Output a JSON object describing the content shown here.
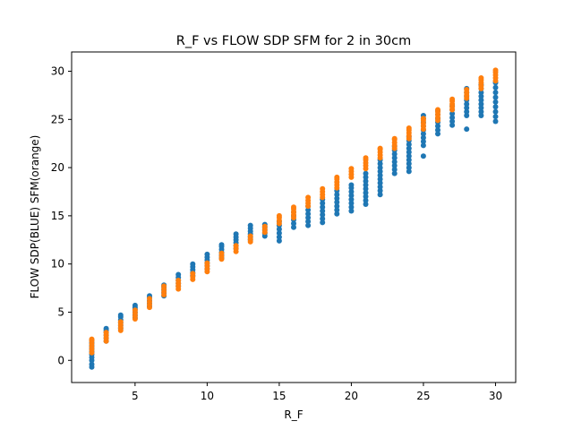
{
  "chart_data": {
    "type": "scatter",
    "title": "R_F vs FLOW SDP SFM for 2 in 30cm",
    "xlabel": "R_F",
    "ylabel": "FLOW SDP(BLUE) SFM(orange)",
    "xlim": [
      0.6,
      31.4
    ],
    "ylim": [
      -2.3,
      32.0
    ],
    "xticks": [
      5,
      10,
      15,
      20,
      25,
      30
    ],
    "yticks": [
      0,
      5,
      10,
      15,
      20,
      25,
      30
    ],
    "grid": false,
    "legend": "none",
    "series": [
      {
        "color": "#1f77b4",
        "points": [
          [
            2,
            -0.7
          ],
          [
            2,
            -0.4
          ],
          [
            2,
            0.0
          ],
          [
            2,
            0.3
          ],
          [
            2,
            0.6
          ],
          [
            2,
            0.9
          ],
          [
            2,
            1.2
          ],
          [
            2,
            1.5
          ],
          [
            2,
            1.8
          ],
          [
            2,
            2.1
          ],
          [
            3,
            2.0
          ],
          [
            3,
            2.3
          ],
          [
            3,
            2.6
          ],
          [
            3,
            2.9
          ],
          [
            3,
            3.1
          ],
          [
            3,
            3.3
          ],
          [
            4,
            3.3
          ],
          [
            4,
            3.6
          ],
          [
            4,
            3.9
          ],
          [
            4,
            4.2
          ],
          [
            4,
            4.5
          ],
          [
            4,
            4.7
          ],
          [
            5,
            4.4
          ],
          [
            5,
            4.7
          ],
          [
            5,
            5.0
          ],
          [
            5,
            5.3
          ],
          [
            5,
            5.5
          ],
          [
            5,
            5.7
          ],
          [
            6,
            5.6
          ],
          [
            6,
            5.9
          ],
          [
            6,
            6.2
          ],
          [
            6,
            6.5
          ],
          [
            6,
            6.7
          ],
          [
            7,
            6.7
          ],
          [
            7,
            7.0
          ],
          [
            7,
            7.3
          ],
          [
            7,
            7.6
          ],
          [
            7,
            7.8
          ],
          [
            8,
            7.7
          ],
          [
            8,
            8.0
          ],
          [
            8,
            8.3
          ],
          [
            8,
            8.6
          ],
          [
            8,
            8.9
          ],
          [
            9,
            8.8
          ],
          [
            9,
            9.1
          ],
          [
            9,
            9.4
          ],
          [
            9,
            9.7
          ],
          [
            9,
            10.0
          ],
          [
            10,
            9.5
          ],
          [
            10,
            9.8
          ],
          [
            10,
            10.1
          ],
          [
            10,
            10.4
          ],
          [
            10,
            10.7
          ],
          [
            10,
            11.0
          ],
          [
            11,
            10.6
          ],
          [
            11,
            10.9
          ],
          [
            11,
            11.2
          ],
          [
            11,
            11.5
          ],
          [
            11,
            11.8
          ],
          [
            11,
            12.0
          ],
          [
            12,
            11.6
          ],
          [
            12,
            11.9
          ],
          [
            12,
            12.2
          ],
          [
            12,
            12.5
          ],
          [
            12,
            12.8
          ],
          [
            12,
            13.1
          ],
          [
            13,
            12.5
          ],
          [
            13,
            12.8
          ],
          [
            13,
            13.1
          ],
          [
            13,
            13.4
          ],
          [
            13,
            13.7
          ],
          [
            13,
            14.0
          ],
          [
            14,
            12.9
          ],
          [
            14,
            13.2
          ],
          [
            14,
            13.5
          ],
          [
            14,
            13.8
          ],
          [
            14,
            14.1
          ],
          [
            15,
            12.4
          ],
          [
            15,
            12.8
          ],
          [
            15,
            13.2
          ],
          [
            15,
            13.6
          ],
          [
            15,
            14.0
          ],
          [
            15,
            14.4
          ],
          [
            16,
            13.8
          ],
          [
            16,
            14.2
          ],
          [
            16,
            14.6
          ],
          [
            16,
            15.0
          ],
          [
            16,
            15.4
          ],
          [
            17,
            14.0
          ],
          [
            17,
            14.4
          ],
          [
            17,
            14.8
          ],
          [
            17,
            15.2
          ],
          [
            17,
            15.6
          ],
          [
            17,
            16.0
          ],
          [
            18,
            14.3
          ],
          [
            18,
            14.7
          ],
          [
            18,
            15.1
          ],
          [
            18,
            15.5
          ],
          [
            18,
            15.9
          ],
          [
            18,
            16.3
          ],
          [
            18,
            16.7
          ],
          [
            19,
            15.2
          ],
          [
            19,
            15.6
          ],
          [
            19,
            16.0
          ],
          [
            19,
            16.4
          ],
          [
            19,
            16.8
          ],
          [
            19,
            17.2
          ],
          [
            19,
            17.6
          ],
          [
            20,
            15.5
          ],
          [
            20,
            15.9
          ],
          [
            20,
            16.3
          ],
          [
            20,
            16.7
          ],
          [
            20,
            17.1
          ],
          [
            20,
            17.5
          ],
          [
            20,
            17.9
          ],
          [
            20,
            18.2
          ],
          [
            21,
            16.2
          ],
          [
            21,
            16.6
          ],
          [
            21,
            17.0
          ],
          [
            21,
            17.4
          ],
          [
            21,
            17.8
          ],
          [
            21,
            18.2
          ],
          [
            21,
            18.6
          ],
          [
            21,
            19.0
          ],
          [
            21,
            19.4
          ],
          [
            22,
            17.2
          ],
          [
            22,
            17.6
          ],
          [
            22,
            18.0
          ],
          [
            22,
            18.4
          ],
          [
            22,
            18.8
          ],
          [
            22,
            19.2
          ],
          [
            22,
            19.6
          ],
          [
            22,
            20.0
          ],
          [
            22,
            20.4
          ],
          [
            22,
            20.8
          ],
          [
            23,
            19.4
          ],
          [
            23,
            19.8
          ],
          [
            23,
            20.2
          ],
          [
            23,
            20.6
          ],
          [
            23,
            21.0
          ],
          [
            23,
            21.4
          ],
          [
            23,
            21.8
          ],
          [
            23,
            22.2
          ],
          [
            24,
            19.6
          ],
          [
            24,
            20.0
          ],
          [
            24,
            20.4
          ],
          [
            24,
            20.8
          ],
          [
            24,
            21.2
          ],
          [
            24,
            21.6
          ],
          [
            24,
            22.0
          ],
          [
            24,
            22.4
          ],
          [
            24,
            22.8
          ],
          [
            24,
            23.2
          ],
          [
            25,
            21.2
          ],
          [
            25,
            22.3
          ],
          [
            25,
            22.7
          ],
          [
            25,
            23.1
          ],
          [
            25,
            23.5
          ],
          [
            25,
            23.9
          ],
          [
            25,
            24.3
          ],
          [
            25,
            24.7
          ],
          [
            25,
            25.1
          ],
          [
            25,
            25.4
          ],
          [
            26,
            23.5
          ],
          [
            26,
            23.9
          ],
          [
            26,
            24.3
          ],
          [
            26,
            24.7
          ],
          [
            26,
            25.1
          ],
          [
            26,
            25.5
          ],
          [
            26,
            25.9
          ],
          [
            27,
            24.4
          ],
          [
            27,
            24.8
          ],
          [
            27,
            25.2
          ],
          [
            27,
            25.6
          ],
          [
            27,
            26.0
          ],
          [
            27,
            26.4
          ],
          [
            28,
            24.0
          ],
          [
            28,
            25.4
          ],
          [
            28,
            25.8
          ],
          [
            28,
            26.2
          ],
          [
            28,
            26.6
          ],
          [
            28,
            27.0
          ],
          [
            28,
            27.4
          ],
          [
            28,
            27.8
          ],
          [
            28,
            28.2
          ],
          [
            29,
            25.4
          ],
          [
            29,
            25.8
          ],
          [
            29,
            26.2
          ],
          [
            29,
            26.6
          ],
          [
            29,
            27.0
          ],
          [
            29,
            27.4
          ],
          [
            29,
            27.8
          ],
          [
            29,
            28.2
          ],
          [
            29,
            28.6
          ],
          [
            30,
            24.8
          ],
          [
            30,
            25.3
          ],
          [
            30,
            25.8
          ],
          [
            30,
            26.3
          ],
          [
            30,
            26.8
          ],
          [
            30,
            27.3
          ],
          [
            30,
            27.8
          ],
          [
            30,
            28.3
          ],
          [
            30,
            28.8
          ]
        ]
      },
      {
        "color": "#ff7f0e",
        "points": [
          [
            2,
            0.8
          ],
          [
            2,
            1.1
          ],
          [
            2,
            1.4
          ],
          [
            2,
            1.7
          ],
          [
            2,
            2.0
          ],
          [
            2,
            2.2
          ],
          [
            3,
            2.0
          ],
          [
            3,
            2.3
          ],
          [
            3,
            2.6
          ],
          [
            3,
            2.9
          ],
          [
            4,
            3.1
          ],
          [
            4,
            3.4
          ],
          [
            4,
            3.7
          ],
          [
            4,
            4.0
          ],
          [
            5,
            4.3
          ],
          [
            5,
            4.6
          ],
          [
            5,
            4.9
          ],
          [
            5,
            5.2
          ],
          [
            6,
            5.5
          ],
          [
            6,
            5.8
          ],
          [
            6,
            6.1
          ],
          [
            6,
            6.4
          ],
          [
            7,
            6.8
          ],
          [
            7,
            7.1
          ],
          [
            7,
            7.4
          ],
          [
            7,
            7.7
          ],
          [
            8,
            7.4
          ],
          [
            8,
            7.7
          ],
          [
            8,
            8.0
          ],
          [
            8,
            8.3
          ],
          [
            9,
            8.4
          ],
          [
            9,
            8.7
          ],
          [
            9,
            9.0
          ],
          [
            10,
            9.2
          ],
          [
            10,
            9.5
          ],
          [
            10,
            9.8
          ],
          [
            10,
            10.1
          ],
          [
            11,
            10.5
          ],
          [
            11,
            10.8
          ],
          [
            11,
            11.1
          ],
          [
            12,
            11.3
          ],
          [
            12,
            11.6
          ],
          [
            12,
            11.9
          ],
          [
            13,
            12.3
          ],
          [
            13,
            12.6
          ],
          [
            13,
            12.9
          ],
          [
            14,
            13.3
          ],
          [
            14,
            13.6
          ],
          [
            14,
            13.9
          ],
          [
            15,
            14.2
          ],
          [
            15,
            14.5
          ],
          [
            15,
            14.8
          ],
          [
            15,
            15.0
          ],
          [
            16,
            14.8
          ],
          [
            16,
            15.1
          ],
          [
            16,
            15.4
          ],
          [
            16,
            15.7
          ],
          [
            16,
            15.9
          ],
          [
            17,
            16.0
          ],
          [
            17,
            16.3
          ],
          [
            17,
            16.6
          ],
          [
            17,
            16.9
          ],
          [
            18,
            16.9
          ],
          [
            18,
            17.2
          ],
          [
            18,
            17.5
          ],
          [
            18,
            17.8
          ],
          [
            19,
            17.9
          ],
          [
            19,
            18.2
          ],
          [
            19,
            18.5
          ],
          [
            19,
            18.8
          ],
          [
            19,
            19.0
          ],
          [
            20,
            19.0
          ],
          [
            20,
            19.3
          ],
          [
            20,
            19.6
          ],
          [
            20,
            19.9
          ],
          [
            21,
            19.9
          ],
          [
            21,
            20.2
          ],
          [
            21,
            20.5
          ],
          [
            21,
            20.8
          ],
          [
            21,
            21.0
          ],
          [
            22,
            21.0
          ],
          [
            22,
            21.3
          ],
          [
            22,
            21.6
          ],
          [
            22,
            21.9
          ],
          [
            22,
            22.0
          ],
          [
            23,
            22.0
          ],
          [
            23,
            22.3
          ],
          [
            23,
            22.6
          ],
          [
            23,
            22.9
          ],
          [
            23,
            23.0
          ],
          [
            24,
            23.0
          ],
          [
            24,
            23.3
          ],
          [
            24,
            23.6
          ],
          [
            24,
            23.9
          ],
          [
            24,
            24.1
          ],
          [
            25,
            24.0
          ],
          [
            25,
            24.3
          ],
          [
            25,
            24.6
          ],
          [
            25,
            24.9
          ],
          [
            25,
            25.1
          ],
          [
            26,
            24.9
          ],
          [
            26,
            25.2
          ],
          [
            26,
            25.5
          ],
          [
            26,
            25.8
          ],
          [
            26,
            26.0
          ],
          [
            27,
            26.0
          ],
          [
            27,
            26.3
          ],
          [
            27,
            26.6
          ],
          [
            27,
            26.9
          ],
          [
            27,
            27.1
          ],
          [
            28,
            27.2
          ],
          [
            28,
            27.5
          ],
          [
            28,
            27.8
          ],
          [
            28,
            28.1
          ],
          [
            29,
            28.2
          ],
          [
            29,
            28.5
          ],
          [
            29,
            28.8
          ],
          [
            29,
            29.1
          ],
          [
            29,
            29.3
          ],
          [
            30,
            29.0
          ],
          [
            30,
            29.3
          ],
          [
            30,
            29.6
          ],
          [
            30,
            29.9
          ],
          [
            30,
            30.1
          ]
        ]
      }
    ]
  }
}
